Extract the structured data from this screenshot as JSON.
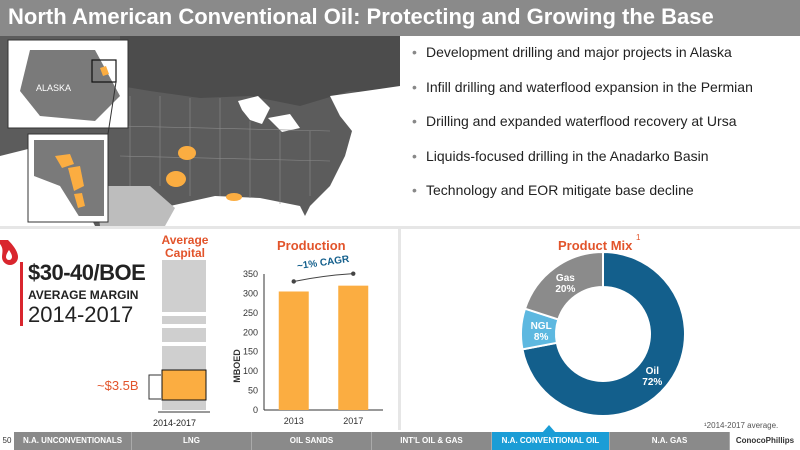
{
  "title": "North American Conventional Oil: Protecting and Growing the Base",
  "map": {
    "alaska_label": "ALASKA"
  },
  "bullets": [
    "Development drilling and major projects in Alaska",
    "Infill drilling and waterflood expansion in the Permian",
    "Drilling and expanded waterflood recovery at Ursa",
    "Liquids-focused drilling in the Anadarko Basin",
    "Technology and EOR mitigate base decline"
  ],
  "margin": {
    "value": "$30-40/BOE",
    "label": "AVERAGE MARGIN",
    "years": "2014-2017"
  },
  "capital": {
    "title_line1": "Average",
    "title_line2": "Capital",
    "value_label": "~$3.5B",
    "x_label": "2014-2017"
  },
  "production": {
    "title": "Production",
    "cagr_label": "~1% CAGR"
  },
  "product_mix": {
    "title": "Product Mix",
    "superscript": "1",
    "footnote": "¹2014-2017 average."
  },
  "colors": {
    "accent_orange": "#fbad41",
    "title_orange": "#e2542b",
    "oil_blue": "#135f8c",
    "ngl_blue": "#5db8e0",
    "gas_gray": "#8b8b8b",
    "red": "#d9262e",
    "nav_active": "#1b9dd6"
  },
  "chart_data": [
    {
      "type": "bar",
      "title": "Production",
      "ylabel": "MBOED",
      "categories": [
        "2013",
        "2017"
      ],
      "values": [
        305,
        320
      ],
      "ylim": [
        0,
        350
      ],
      "yticks": [
        0,
        50,
        100,
        150,
        200,
        250,
        300,
        350
      ],
      "annotation": "~1% CAGR"
    },
    {
      "type": "pie",
      "title": "Product Mix",
      "labels": [
        "Oil",
        "NGL",
        "Gas"
      ],
      "values": [
        72,
        8,
        20
      ],
      "value_labels": [
        "72%",
        "8%",
        "20%"
      ]
    }
  ],
  "nav": {
    "page_number": "50",
    "tabs": [
      {
        "label": "N.A. UNCONVENTIONALS",
        "active": false
      },
      {
        "label": "LNG",
        "active": false
      },
      {
        "label": "OIL SANDS",
        "active": false
      },
      {
        "label": "INT'L OIL & GAS",
        "active": false
      },
      {
        "label": "N.A. CONVENTIONAL OIL",
        "active": true
      },
      {
        "label": "N.A. GAS",
        "active": false
      }
    ],
    "logo_text": "ConocoPhillips"
  }
}
